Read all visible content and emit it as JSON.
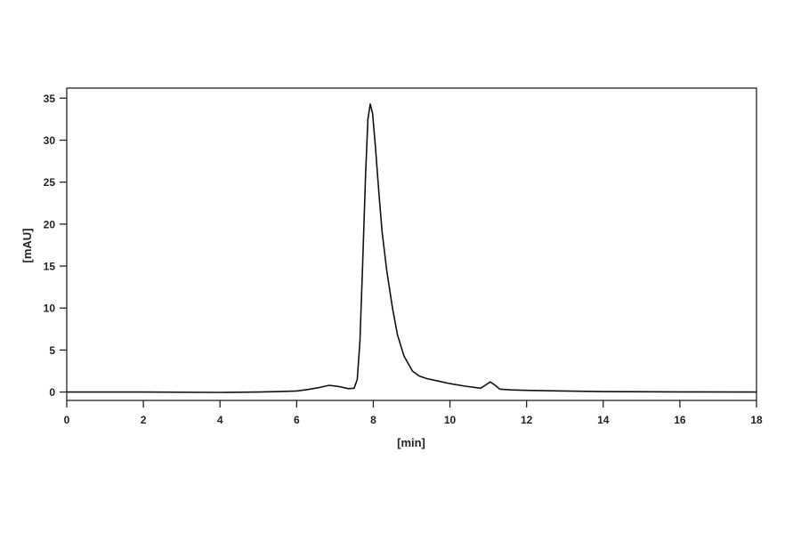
{
  "chart_data": {
    "type": "line",
    "title": "",
    "xlabel": "[min]",
    "ylabel": "[mAU]",
    "xlim": [
      0,
      18
    ],
    "ylim": [
      -1,
      36.2
    ],
    "xticks": [
      0,
      2,
      4,
      6,
      8,
      10,
      12,
      14,
      16,
      18
    ],
    "yticks": [
      0,
      5,
      10,
      15,
      20,
      25,
      30,
      35
    ],
    "grid": false,
    "line_color": "#111111",
    "series": [
      {
        "x": [
          0,
          2,
          4,
          5,
          5.5,
          6,
          6.3,
          6.6,
          6.85,
          7.1,
          7.35,
          7.5,
          7.58,
          7.65,
          7.72,
          7.8,
          7.86,
          7.92,
          7.98,
          8.05,
          8.15,
          8.23,
          8.35,
          8.5,
          8.63,
          8.8,
          9.02,
          9.2,
          9.4,
          9.7,
          10.0,
          10.4,
          10.8,
          10.92,
          11.05,
          11.18,
          11.3,
          11.6,
          12,
          13,
          14,
          16,
          18
        ],
        "y": [
          0,
          0,
          -0.05,
          0,
          0.05,
          0.12,
          0.3,
          0.55,
          0.8,
          0.65,
          0.4,
          0.45,
          1.5,
          6,
          15,
          26,
          32.5,
          34.3,
          33.2,
          29.5,
          23.5,
          19.1,
          14.5,
          10,
          6.8,
          4.3,
          2.5,
          1.9,
          1.6,
          1.3,
          1.0,
          0.7,
          0.45,
          0.8,
          1.2,
          0.8,
          0.35,
          0.25,
          0.2,
          0.12,
          0.05,
          0.02,
          0
        ]
      }
    ]
  }
}
